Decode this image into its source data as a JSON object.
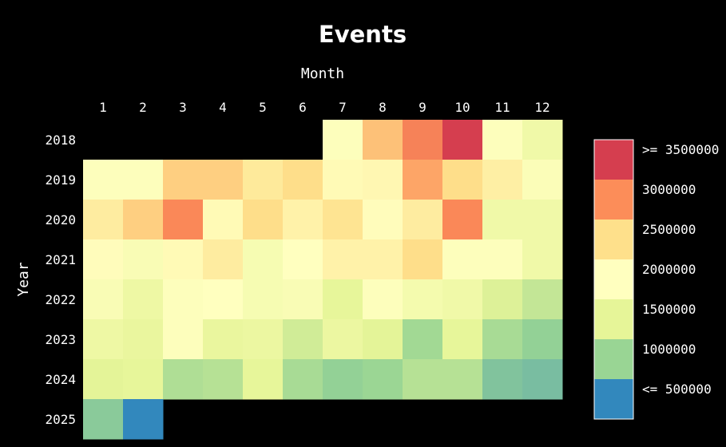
{
  "chart_data": {
    "type": "heatmap",
    "title": "Events",
    "xlabel": "Month",
    "ylabel": "Year",
    "x_categories": [
      "1",
      "2",
      "3",
      "4",
      "5",
      "6",
      "7",
      "8",
      "9",
      "10",
      "11",
      "12"
    ],
    "y_categories": [
      "2018",
      "2019",
      "2020",
      "2021",
      "2022",
      "2023",
      "2024",
      "2025"
    ],
    "values": [
      [
        null,
        null,
        null,
        null,
        null,
        null,
        1950000,
        2800000,
        3250000,
        3750000,
        1950000,
        1650000
      ],
      [
        1950000,
        1950000,
        2700000,
        2700000,
        2400000,
        2600000,
        2100000,
        2150000,
        3000000,
        2600000,
        2300000,
        1900000
      ],
      [
        2350000,
        2700000,
        3200000,
        2100000,
        2600000,
        2250000,
        2500000,
        2050000,
        2350000,
        3200000,
        1650000,
        1650000
      ],
      [
        2050000,
        1850000,
        2100000,
        2350000,
        1800000,
        2000000,
        2250000,
        2250000,
        2600000,
        1950000,
        1950000,
        1650000
      ],
      [
        1850000,
        1600000,
        1950000,
        2000000,
        1800000,
        1850000,
        1450000,
        1950000,
        1750000,
        1650000,
        1350000,
        1150000
      ],
      [
        1600000,
        1500000,
        1950000,
        1500000,
        1550000,
        1250000,
        1550000,
        1400000,
        900000,
        1450000,
        950000,
        800000
      ],
      [
        1400000,
        1450000,
        1000000,
        1050000,
        1450000,
        950000,
        800000,
        850000,
        1050000,
        1050000,
        700000,
        650000
      ],
      [
        750000,
        250000,
        null,
        null,
        null,
        null,
        null,
        null,
        null,
        null,
        null,
        null
      ]
    ],
    "legend": {
      "placement": "right",
      "bins": [
        {
          "label": ">= 3500000",
          "color": "#d53e4f"
        },
        {
          "label": "3000000",
          "color": "#fc8d59"
        },
        {
          "label": "2500000",
          "color": "#fee08b"
        },
        {
          "label": "2000000",
          "color": "#ffffbf"
        },
        {
          "label": "1500000",
          "color": "#e6f598"
        },
        {
          "label": "1000000",
          "color": "#99d594"
        },
        {
          "label": "<= 500000",
          "color": "#3288bd"
        }
      ]
    },
    "colorscale": [
      "#3288bd",
      "#99d594",
      "#e6f598",
      "#ffffbf",
      "#fee08b",
      "#fc8d59",
      "#d53e4f"
    ],
    "value_range": [
      250000,
      3750000
    ],
    "background": "#000000"
  }
}
